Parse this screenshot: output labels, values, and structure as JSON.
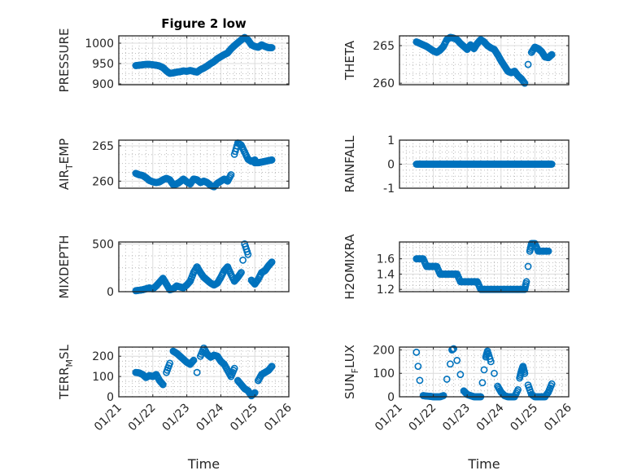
{
  "chart_data": [
    {
      "type": "scatter",
      "title": "Figure 2 low",
      "ylabel": "PRESSURE",
      "xlabel": "",
      "ylim": [
        898,
        1018
      ],
      "yticks": [
        900,
        950,
        1000
      ],
      "grid": true,
      "x": [
        0.5,
        0.6,
        0.7,
        0.8,
        0.9,
        1.0,
        1.1,
        1.2,
        1.3,
        1.4,
        1.5,
        1.6,
        1.7,
        1.8,
        1.9,
        2.0,
        2.1,
        2.2,
        2.3,
        2.4,
        2.5,
        2.6,
        2.7,
        2.8,
        2.9,
        3.0,
        3.1,
        3.2,
        3.3,
        3.4,
        3.5,
        3.6,
        3.7,
        3.8,
        3.9,
        4.0,
        4.1,
        4.2,
        4.3,
        4.4,
        4.5
      ],
      "y": [
        945,
        946,
        947,
        948,
        948,
        947,
        946,
        944,
        940,
        932,
        926,
        927,
        929,
        930,
        932,
        931,
        933,
        931,
        929,
        935,
        939,
        944,
        950,
        955,
        962,
        967,
        972,
        976,
        986,
        994,
        1001,
        1008,
        1014,
        1008,
        996,
        992,
        990,
        996,
        992,
        989,
        989
      ]
    },
    {
      "type": "scatter",
      "title": "",
      "ylabel": "THETA",
      "xlabel": "",
      "ylim": [
        259.8,
        266.3
      ],
      "yticks": [
        260,
        265
      ],
      "grid": true,
      "x": [
        0.5,
        0.6,
        0.7,
        0.8,
        0.9,
        1.0,
        1.1,
        1.2,
        1.3,
        1.4,
        1.5,
        1.6,
        1.7,
        1.8,
        1.9,
        2.0,
        2.1,
        2.2,
        2.3,
        2.4,
        2.5,
        2.6,
        2.7,
        2.8,
        2.9,
        3.0,
        3.1,
        3.2,
        3.3,
        3.4,
        3.5,
        3.6,
        3.7,
        3.8,
        3.9,
        4.0,
        4.1,
        4.2,
        4.3,
        4.4,
        4.5
      ],
      "y": [
        265.5,
        265.3,
        265.1,
        264.9,
        264.6,
        264.3,
        264.1,
        264.4,
        264.9,
        265.8,
        266.1,
        266.0,
        265.8,
        265.3,
        264.9,
        264.5,
        265.1,
        264.6,
        265.3,
        265.8,
        265.5,
        265.0,
        264.7,
        264.5,
        263.8,
        263.0,
        262.3,
        261.6,
        261.4,
        261.6,
        261.0,
        260.6,
        260.0,
        262.5,
        264.1,
        264.8,
        264.6,
        264.2,
        263.5,
        263.4,
        263.8
      ]
    },
    {
      "type": "scatter",
      "title": "",
      "ylabel": "AIR_TEMP",
      "xlabel": "",
      "ylim": [
        259.0,
        265.8
      ],
      "yticks": [
        260,
        265
      ],
      "grid": true,
      "x": [
        0.5,
        0.6,
        0.7,
        0.8,
        0.9,
        1.0,
        1.1,
        1.2,
        1.3,
        1.4,
        1.5,
        1.6,
        1.7,
        1.8,
        1.9,
        2.0,
        2.1,
        2.2,
        2.3,
        2.4,
        2.5,
        2.6,
        2.7,
        2.8,
        2.9,
        3.0,
        3.1,
        3.2,
        3.3,
        3.4,
        3.5,
        3.6,
        3.7,
        3.8,
        3.9,
        4.0,
        4.0,
        4.1,
        4.2,
        4.3,
        4.4,
        4.5
      ],
      "y": [
        261.1,
        260.9,
        260.8,
        260.5,
        260.1,
        259.9,
        259.8,
        259.9,
        260.2,
        260.4,
        260.2,
        259.5,
        259.6,
        259.9,
        260.3,
        259.9,
        259.6,
        260.3,
        260.2,
        259.8,
        260.0,
        259.8,
        259.4,
        259.2,
        259.7,
        260.0,
        260.3,
        260.0,
        260.9,
        263.8,
        265.4,
        265.1,
        264.1,
        263.1,
        262.8,
        263.0,
        262.6,
        262.6,
        262.7,
        262.8,
        262.9,
        263.0
      ]
    },
    {
      "type": "scatter",
      "title": "",
      "ylabel": "RAINFALL",
      "xlabel": "",
      "ylim": [
        -1,
        1
      ],
      "yticks": [
        -1,
        0,
        1
      ],
      "grid": true,
      "x": [
        0.5,
        0.6,
        0.7,
        0.8,
        0.9,
        1.0,
        1.1,
        1.2,
        1.3,
        1.4,
        1.5,
        1.6,
        1.7,
        1.8,
        1.9,
        2.0,
        2.1,
        2.2,
        2.3,
        2.4,
        2.5,
        2.6,
        2.7,
        2.8,
        2.9,
        3.0,
        3.1,
        3.2,
        3.3,
        3.4,
        3.5,
        3.6,
        3.7,
        3.8,
        3.9,
        4.0,
        4.1,
        4.2,
        4.3,
        4.4,
        4.5
      ],
      "y": [
        0,
        0,
        0,
        0,
        0,
        0,
        0,
        0,
        0,
        0,
        0,
        0,
        0,
        0,
        0,
        0,
        0,
        0,
        0,
        0,
        0,
        0,
        0,
        0,
        0,
        0,
        0,
        0,
        0,
        0,
        0,
        0,
        0,
        0,
        0,
        0,
        0,
        0,
        0,
        0,
        0
      ]
    },
    {
      "type": "scatter",
      "title": "",
      "ylabel": "MIXDEPTH",
      "xlabel": "",
      "ylim": [
        0,
        520
      ],
      "yticks": [
        0,
        500
      ],
      "grid": true,
      "x": [
        0.5,
        0.6,
        0.7,
        0.8,
        0.9,
        1.0,
        1.1,
        1.2,
        1.3,
        1.4,
        1.5,
        1.6,
        1.7,
        1.8,
        1.9,
        2.0,
        2.1,
        2.2,
        2.3,
        2.4,
        2.5,
        2.6,
        2.7,
        2.8,
        2.9,
        3.0,
        3.1,
        3.2,
        3.3,
        3.4,
        3.5,
        3.6,
        3.65,
        3.7,
        3.8,
        3.9,
        4.0,
        4.1,
        4.2,
        4.3,
        4.4,
        4.5
      ],
      "y": [
        10,
        15,
        20,
        30,
        40,
        30,
        60,
        100,
        140,
        80,
        20,
        30,
        60,
        50,
        40,
        70,
        110,
        200,
        260,
        200,
        150,
        120,
        90,
        70,
        90,
        150,
        220,
        260,
        180,
        110,
        150,
        200,
        330,
        500,
        390,
        120,
        80,
        130,
        200,
        220,
        270,
        310
      ]
    },
    {
      "type": "scatter",
      "title": "",
      "ylabel": "H2OMIXRA",
      "xlabel": "",
      "ylim": [
        1.17,
        1.82
      ],
      "yticks": [
        1.2,
        1.4,
        1.6
      ],
      "grid": true,
      "x": [
        0.5,
        0.6,
        0.7,
        0.8,
        0.9,
        1.0,
        1.1,
        1.2,
        1.3,
        1.4,
        1.5,
        1.6,
        1.7,
        1.8,
        1.9,
        2.0,
        2.1,
        2.2,
        2.3,
        2.4,
        2.5,
        2.6,
        2.7,
        2.8,
        2.9,
        3.0,
        3.1,
        3.2,
        3.3,
        3.4,
        3.5,
        3.6,
        3.7,
        3.75,
        3.8,
        3.85,
        3.9,
        4.0,
        4.1,
        4.2,
        4.3,
        4.4
      ],
      "y": [
        1.6,
        1.6,
        1.6,
        1.5,
        1.5,
        1.5,
        1.5,
        1.4,
        1.4,
        1.4,
        1.4,
        1.4,
        1.4,
        1.3,
        1.3,
        1.3,
        1.3,
        1.3,
        1.3,
        1.2,
        1.2,
        1.2,
        1.2,
        1.2,
        1.2,
        1.2,
        1.2,
        1.2,
        1.2,
        1.2,
        1.2,
        1.2,
        1.2,
        1.3,
        1.5,
        1.7,
        1.8,
        1.8,
        1.7,
        1.7,
        1.7,
        1.7
      ]
    },
    {
      "type": "scatter",
      "title": "",
      "ylabel": "TERR_MSL",
      "xlabel": "Time",
      "ylim": [
        0,
        245
      ],
      "yticks": [
        0,
        100,
        200
      ],
      "xticklabels": [
        "01/21",
        "01/22",
        "01/23",
        "01/24",
        "01/25",
        "01/26"
      ],
      "grid": true,
      "x": [
        0.5,
        0.6,
        0.7,
        0.8,
        0.9,
        1.0,
        1.1,
        1.2,
        1.3,
        1.4,
        1.5,
        1.6,
        1.7,
        1.8,
        1.9,
        2.0,
        2.1,
        2.2,
        2.3,
        2.4,
        2.5,
        2.6,
        2.7,
        2.8,
        2.9,
        3.0,
        3.1,
        3.2,
        3.3,
        3.4,
        3.5,
        3.6,
        3.7,
        3.8,
        3.9,
        4.0,
        4.1,
        4.2,
        4.3,
        4.4,
        4.5
      ],
      "y": [
        120,
        118,
        110,
        95,
        105,
        100,
        110,
        80,
        60,
        120,
        165,
        225,
        215,
        200,
        185,
        170,
        160,
        180,
        120,
        200,
        240,
        210,
        195,
        205,
        200,
        175,
        160,
        130,
        100,
        140,
        80,
        60,
        40,
        30,
        5,
        20,
        80,
        110,
        120,
        130,
        150
      ]
    },
    {
      "type": "scatter",
      "title": "",
      "ylabel": "SUN_FLUX",
      "xlabel": "Time",
      "ylim": [
        0,
        212
      ],
      "yticks": [
        0,
        100,
        200
      ],
      "xticklabels": [
        "01/21",
        "01/22",
        "01/23",
        "01/24",
        "01/25",
        "01/26"
      ],
      "grid": true,
      "x": [
        0.5,
        0.55,
        0.6,
        0.7,
        0.8,
        0.9,
        1.0,
        1.1,
        1.2,
        1.3,
        1.4,
        1.5,
        1.55,
        1.6,
        1.7,
        1.8,
        1.9,
        2.0,
        2.1,
        2.2,
        2.3,
        2.4,
        2.45,
        2.5,
        2.55,
        2.6,
        2.7,
        2.8,
        2.9,
        3.0,
        3.1,
        3.2,
        3.3,
        3.4,
        3.5,
        3.55,
        3.6,
        3.65,
        3.7,
        3.8,
        3.9,
        4.0,
        4.1,
        4.2,
        4.3,
        4.4,
        4.5
      ],
      "y": [
        190,
        130,
        70,
        5,
        3,
        2,
        0,
        0,
        0,
        5,
        75,
        140,
        200,
        205,
        155,
        95,
        25,
        10,
        5,
        0,
        0,
        0,
        60,
        115,
        170,
        195,
        150,
        100,
        45,
        20,
        5,
        0,
        0,
        0,
        30,
        80,
        110,
        130,
        100,
        50,
        10,
        0,
        0,
        0,
        0,
        20,
        55
      ]
    }
  ],
  "time_axis": {
    "start_label": "01/21",
    "tick_labels": [
      "01/21",
      "01/22",
      "01/23",
      "01/24",
      "01/25",
      "01/26"
    ],
    "xlim_days": [
      0,
      5
    ]
  },
  "colors": {
    "marker": "#0072BD",
    "axis": "#262626",
    "grid_major": "#dcdcdc",
    "grid_minor": "#bdbdbd"
  },
  "subplot_labels": {
    "air_temp_main": "AIR",
    "air_temp_sub": "T",
    "air_temp_rest": "EMP",
    "terr_main": "TERR",
    "terr_sub": "M",
    "terr_rest": "SL",
    "sun_main": "SUN",
    "sun_sub": "F",
    "sun_rest": "LUX"
  }
}
